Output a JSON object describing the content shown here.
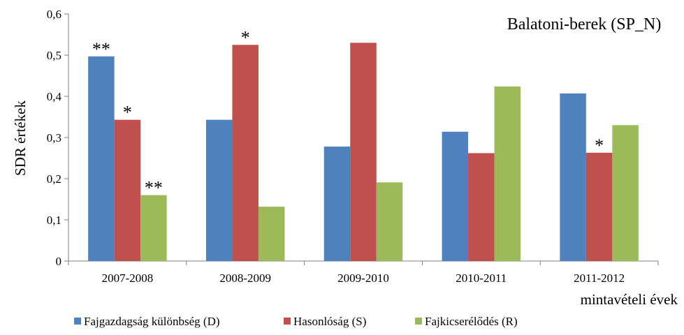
{
  "chart_data": {
    "type": "bar",
    "title": "Balatoni-berek  (SP_N)",
    "ylabel": "SDR értékek",
    "xlabel": "mintavételi évek",
    "ylim": [
      0,
      0.6
    ],
    "yticks": [
      "0",
      "0,1",
      "0,2",
      "0,3",
      "0,4",
      "0,5",
      "0,6"
    ],
    "categories": [
      "2007-2008",
      "2008-2009",
      "2009-2010",
      "2010-2011",
      "2011-2012"
    ],
    "series": [
      {
        "name": "Fajgazdagság különbség (D)",
        "color": "#4f81bd",
        "values": [
          0.497,
          0.343,
          0.278,
          0.314,
          0.407
        ],
        "significance": [
          "**",
          "",
          "",
          "",
          ""
        ]
      },
      {
        "name": "Hasonlóság (S)",
        "color": "#c0504d",
        "values": [
          0.343,
          0.525,
          0.53,
          0.262,
          0.263
        ],
        "significance": [
          "*",
          "*",
          "",
          "",
          "*"
        ]
      },
      {
        "name": "Fajkicserélődés (R)",
        "color": "#9bbb59",
        "values": [
          0.16,
          0.132,
          0.191,
          0.424,
          0.33
        ],
        "significance": [
          "**",
          "",
          "",
          "",
          ""
        ]
      }
    ],
    "grid": false,
    "legend_position": "bottom"
  }
}
